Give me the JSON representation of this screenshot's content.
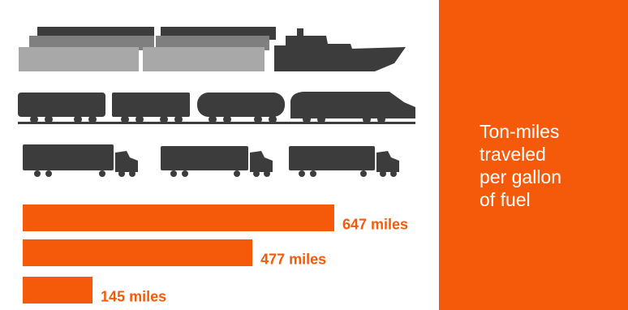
{
  "colors": {
    "bar": "#f55a0a",
    "label": "#f55a0a",
    "callout_bg": "#f55a0a",
    "callout_text": "#ffffff",
    "vehicle_dark": "#3c3c3c",
    "vehicle_mid": "#7f7f7f",
    "vehicle_light": "#a8a8a8"
  },
  "callout": {
    "lines": [
      "Ton-miles",
      "traveled",
      "per gallon",
      "of fuel"
    ]
  },
  "chart_data": {
    "type": "bar",
    "orientation": "horizontal",
    "categories": [
      "barge-icon",
      "train-icon",
      "truck-icon"
    ],
    "values": [
      647,
      477,
      145
    ],
    "labels": [
      "647 miles",
      "477 miles",
      "145 miles"
    ],
    "unit": "miles",
    "xlim": [
      0,
      647
    ],
    "grid": false
  }
}
